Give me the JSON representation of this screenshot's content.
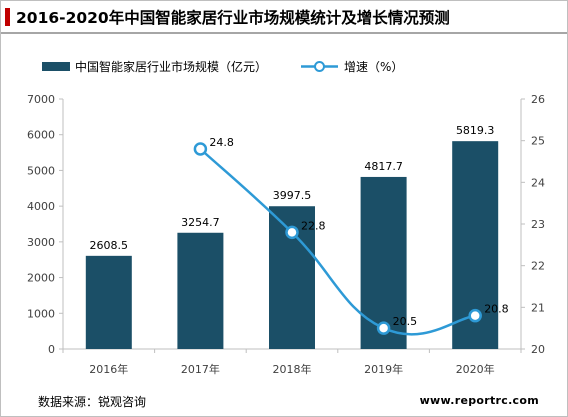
{
  "chart_data": {
    "type": "bar+line",
    "title": "2016-2020年中国智能家居行业市场规模统计及增长情况预测",
    "categories": [
      "2016年",
      "2017年",
      "2018年",
      "2019年",
      "2020年"
    ],
    "series": [
      {
        "name": "中国智能家居行业市场规模（亿元）",
        "type": "bar",
        "axis": "left",
        "color": "#1b4f67",
        "values": [
          2608.5,
          3254.7,
          3997.5,
          4817.7,
          5819.3
        ],
        "labels": [
          "2608.5",
          "3254.7",
          "3997.5",
          "4817.7",
          "5819.3"
        ]
      },
      {
        "name": "增速（%）",
        "type": "line",
        "axis": "right",
        "color": "#2e9ad6",
        "values": [
          null,
          24.8,
          22.8,
          20.5,
          20.8
        ],
        "labels": [
          "",
          "24.8",
          "22.8",
          "20.5",
          "20.8"
        ]
      }
    ],
    "y_left": {
      "min": 0,
      "max": 7000,
      "step": 1000,
      "ticks": [
        "0",
        "1000",
        "2000",
        "3000",
        "4000",
        "5000",
        "6000",
        "7000"
      ]
    },
    "y_right": {
      "min": 20,
      "max": 26,
      "step": 1,
      "ticks": [
        "20",
        "21",
        "22",
        "23",
        "24",
        "25",
        "26"
      ]
    },
    "legend": "top",
    "grid": false
  },
  "footer": {
    "source": "数据来源：锐观咨询",
    "site": "www.reportrc.com"
  }
}
